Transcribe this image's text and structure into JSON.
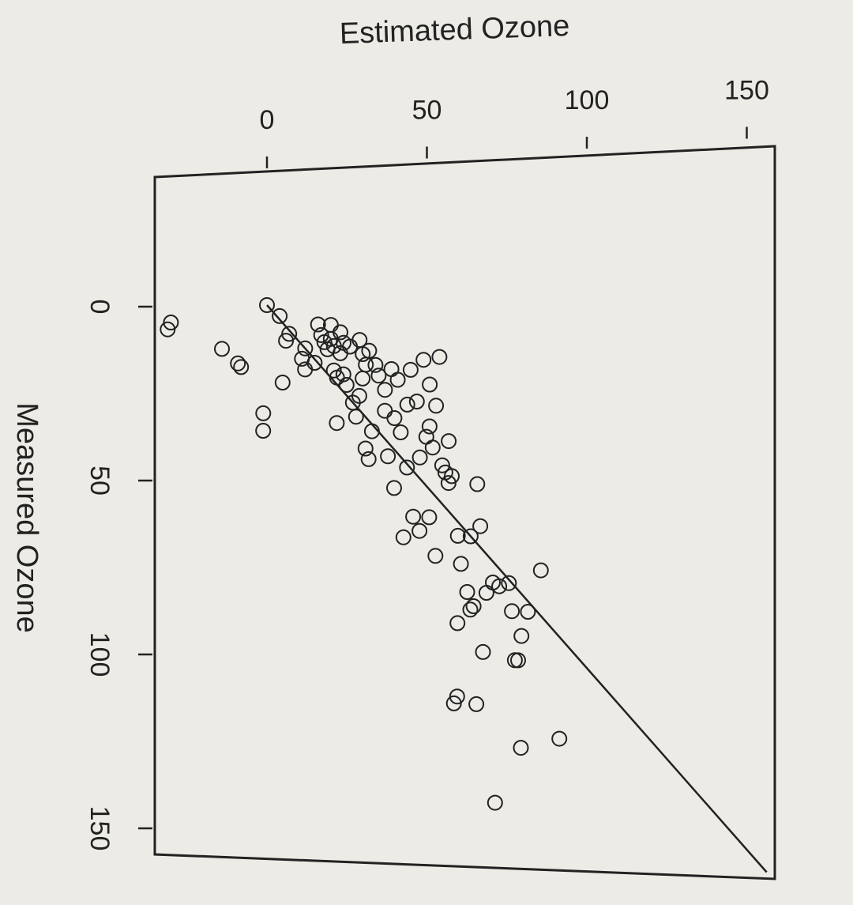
{
  "chart_data": {
    "type": "scatter",
    "title": "",
    "xlabel": "Estimated Ozone",
    "ylabel": "Measured Ozone",
    "x_ticks": [
      0,
      50,
      100,
      150
    ],
    "y_ticks": [
      0,
      50,
      100,
      150
    ],
    "xlim": [
      -35,
      157
    ],
    "ylim": [
      -47,
      157
    ],
    "reference_line": {
      "type": "identity",
      "from": [
        0,
        0
      ],
      "to": [
        157,
        157
      ]
    },
    "grid": false,
    "colors": {
      "points": "#222222",
      "line": "#222222",
      "frame": "#222222",
      "background": "#ecebe6"
    },
    "points": [
      [
        -31,
        8
      ],
      [
        -30,
        6
      ],
      [
        -14,
        13
      ],
      [
        -9,
        17
      ],
      [
        -8,
        18
      ],
      [
        -1,
        31
      ],
      [
        -1,
        36
      ],
      [
        0,
        0
      ],
      [
        4,
        3
      ],
      [
        5,
        22
      ],
      [
        6,
        10
      ],
      [
        7,
        8
      ],
      [
        11,
        15
      ],
      [
        12,
        18
      ],
      [
        12,
        12
      ],
      [
        15,
        16
      ],
      [
        16,
        5
      ],
      [
        17,
        8
      ],
      [
        18,
        10
      ],
      [
        19,
        12
      ],
      [
        20,
        5
      ],
      [
        20,
        9
      ],
      [
        21,
        11
      ],
      [
        21,
        18
      ],
      [
        22,
        20
      ],
      [
        22,
        33
      ],
      [
        23,
        7
      ],
      [
        23,
        13
      ],
      [
        24,
        10
      ],
      [
        24,
        19
      ],
      [
        25,
        22
      ],
      [
        26,
        11
      ],
      [
        27,
        27
      ],
      [
        28,
        31
      ],
      [
        29,
        9
      ],
      [
        29,
        25
      ],
      [
        30,
        13
      ],
      [
        30,
        20
      ],
      [
        31,
        16
      ],
      [
        31,
        40
      ],
      [
        32,
        12
      ],
      [
        32,
        43
      ],
      [
        33,
        35
      ],
      [
        34,
        16
      ],
      [
        35,
        19
      ],
      [
        37,
        23
      ],
      [
        37,
        29
      ],
      [
        38,
        42
      ],
      [
        39,
        17
      ],
      [
        40,
        31
      ],
      [
        40,
        51
      ],
      [
        41,
        20
      ],
      [
        42,
        35
      ],
      [
        43,
        65
      ],
      [
        44,
        27
      ],
      [
        44,
        45
      ],
      [
        45,
        17
      ],
      [
        46,
        59
      ],
      [
        47,
        26
      ],
      [
        48,
        42
      ],
      [
        48,
        63
      ],
      [
        49,
        14
      ],
      [
        50,
        36
      ],
      [
        51,
        33
      ],
      [
        51,
        59
      ],
      [
        51,
        21
      ],
      [
        52,
        39
      ],
      [
        53,
        70
      ],
      [
        53,
        27
      ],
      [
        54,
        13
      ],
      [
        55,
        44
      ],
      [
        56,
        46
      ],
      [
        57,
        49
      ],
      [
        57,
        37
      ],
      [
        58,
        47
      ],
      [
        59,
        112
      ],
      [
        60,
        110
      ],
      [
        60,
        64
      ],
      [
        60,
        89
      ],
      [
        61,
        72
      ],
      [
        63,
        80
      ],
      [
        64,
        64
      ],
      [
        64,
        85
      ],
      [
        65,
        84
      ],
      [
        66,
        112
      ],
      [
        66,
        49
      ],
      [
        67,
        61
      ],
      [
        68,
        97
      ],
      [
        69,
        80
      ],
      [
        71,
        77
      ],
      [
        72,
        140
      ],
      [
        73,
        78
      ],
      [
        76,
        77
      ],
      [
        77,
        85
      ],
      [
        78,
        99
      ],
      [
        79,
        99
      ],
      [
        80,
        92
      ],
      [
        80,
        124
      ],
      [
        82,
        85
      ],
      [
        86,
        73
      ],
      [
        92,
        121
      ]
    ]
  }
}
